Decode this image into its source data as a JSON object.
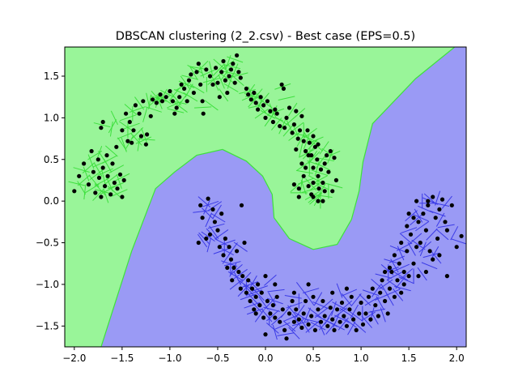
{
  "chart_data": {
    "type": "scatter",
    "title": "DBSCAN clustering (2_2.csv) - Best case (EPS=0.5)",
    "xlabel": "",
    "ylabel": "",
    "xlim": [
      -2.1,
      2.1
    ],
    "ylim": [
      -1.75,
      1.85
    ],
    "xticks": [
      -2.0,
      -1.5,
      -1.0,
      -0.5,
      0.0,
      0.5,
      1.0,
      1.5,
      2.0
    ],
    "yticks": [
      -1.5,
      -1.0,
      -0.5,
      0.0,
      0.5,
      1.0,
      1.5
    ],
    "xtick_labels": [
      "−2.0",
      "−1.5",
      "−1.0",
      "−0.5",
      "0.0",
      "0.5",
      "1.0",
      "1.5",
      "2.0"
    ],
    "ytick_labels": [
      "−1.5",
      "−1.0",
      "−0.5",
      "0.0",
      "0.5",
      "1.0",
      "1.5"
    ],
    "grid": false,
    "legend": "none",
    "colors": {
      "cluster_upper_fill": "#99f599",
      "cluster_upper_edge": "#3ee03e",
      "cluster_lower_fill": "#9a9af5",
      "cluster_lower_edge": "#3b3be6",
      "points": "#000000"
    },
    "regions": [
      {
        "cluster": "upper",
        "boundary": [
          [
            -2.1,
            1.85
          ],
          [
            1.98,
            1.85
          ],
          [
            1.57,
            1.47
          ],
          [
            1.12,
            0.93
          ],
          [
            1.02,
            0.47
          ],
          [
            0.98,
            0.12
          ],
          [
            0.9,
            -0.22
          ],
          [
            0.75,
            -0.52
          ],
          [
            0.5,
            -0.58
          ],
          [
            0.25,
            -0.45
          ],
          [
            0.09,
            -0.2
          ],
          [
            0.07,
            0.08
          ],
          [
            -0.03,
            0.3
          ],
          [
            -0.2,
            0.48
          ],
          [
            -0.45,
            0.62
          ],
          [
            -0.72,
            0.55
          ],
          [
            -0.95,
            0.35
          ],
          [
            -1.15,
            0.15
          ],
          [
            -1.4,
            -0.6
          ],
          [
            -1.72,
            -1.75
          ],
          [
            -2.1,
            -1.75
          ]
        ]
      }
    ],
    "points": {
      "upper": [
        [
          -2.0,
          0.12
        ],
        [
          -1.95,
          0.3
        ],
        [
          -1.9,
          0.45
        ],
        [
          -1.85,
          0.2
        ],
        [
          -1.82,
          0.6
        ],
        [
          -1.8,
          0.35
        ],
        [
          -1.78,
          0.1
        ],
        [
          -1.75,
          0.5
        ],
        [
          -1.74,
          0.28
        ],
        [
          -1.72,
          0.05
        ],
        [
          -1.7,
          0.4
        ],
        [
          -1.68,
          0.18
        ],
        [
          -1.66,
          0.55
        ],
        [
          -1.65,
          0.3
        ],
        [
          -1.62,
          0.08
        ],
        [
          -1.6,
          0.45
        ],
        [
          -1.58,
          0.22
        ],
        [
          -1.56,
          0.65
        ],
        [
          -1.55,
          0.15
        ],
        [
          -1.52,
          0.32
        ],
        [
          -1.5,
          0.05
        ],
        [
          -1.48,
          0.25
        ],
        [
          -1.7,
          0.95
        ],
        [
          -1.72,
          0.88
        ],
        [
          -1.5,
          0.85
        ],
        [
          -1.46,
          1.05
        ],
        [
          -1.44,
          0.72
        ],
        [
          -1.42,
          0.95
        ],
        [
          -1.4,
          0.7
        ],
        [
          -1.38,
          0.85
        ],
        [
          -1.36,
          1.15
        ],
        [
          -1.32,
          1.05
        ],
        [
          -1.3,
          0.78
        ],
        [
          -1.28,
          1.2
        ],
        [
          -1.25,
          0.68
        ],
        [
          -1.24,
          0.8
        ],
        [
          -1.2,
          1.02
        ],
        [
          -1.18,
          1.22
        ],
        [
          -1.14,
          1.18
        ],
        [
          -1.1,
          1.28
        ],
        [
          -1.08,
          1.2
        ],
        [
          -1.04,
          1.25
        ],
        [
          -1.0,
          1.32
        ],
        [
          -0.97,
          1.2
        ],
        [
          -0.95,
          1.05
        ],
        [
          -0.93,
          1.12
        ],
        [
          -0.9,
          1.25
        ],
        [
          -0.88,
          1.4
        ],
        [
          -0.85,
          1.35
        ],
        [
          -0.82,
          1.2
        ],
        [
          -0.8,
          1.45
        ],
        [
          -0.78,
          1.52
        ],
        [
          -0.75,
          1.3
        ],
        [
          -0.72,
          1.55
        ],
        [
          -0.7,
          1.65
        ],
        [
          -0.68,
          1.4
        ],
        [
          -0.66,
          1.2
        ],
        [
          -0.65,
          1.05
        ],
        [
          -0.62,
          1.58
        ],
        [
          -0.58,
          1.5
        ],
        [
          -0.55,
          1.4
        ],
        [
          -0.52,
          1.6
        ],
        [
          -0.5,
          1.42
        ],
        [
          -0.48,
          1.25
        ],
        [
          -0.46,
          1.55
        ],
        [
          -0.44,
          1.68
        ],
        [
          -0.42,
          1.45
        ],
        [
          -0.4,
          1.3
        ],
        [
          -0.38,
          1.5
        ],
        [
          -0.36,
          1.58
        ],
        [
          -0.34,
          1.65
        ],
        [
          -0.32,
          1.42
        ],
        [
          -0.3,
          1.75
        ],
        [
          -0.28,
          1.55
        ],
        [
          -0.26,
          1.48
        ],
        [
          -0.2,
          1.35
        ],
        [
          -0.18,
          1.28
        ],
        [
          -0.15,
          1.22
        ],
        [
          -0.12,
          1.3
        ],
        [
          -0.1,
          1.18
        ],
        [
          -0.08,
          1.1
        ],
        [
          -0.05,
          1.25
        ],
        [
          -0.02,
          1.15
        ],
        [
          0.0,
          1.0
        ],
        [
          0.02,
          1.2
        ],
        [
          0.05,
          1.08
        ],
        [
          0.08,
          0.95
        ],
        [
          0.1,
          1.1
        ],
        [
          0.12,
          1.05
        ],
        [
          0.15,
          0.9
        ],
        [
          0.17,
          1.4
        ],
        [
          0.19,
          1.35
        ],
        [
          0.2,
          0.88
        ],
        [
          0.22,
          1.0
        ],
        [
          0.25,
          1.12
        ],
        [
          0.28,
          0.82
        ],
        [
          0.3,
          0.92
        ],
        [
          0.32,
          1.08
        ],
        [
          0.34,
          0.75
        ],
        [
          0.36,
          0.85
        ],
        [
          0.38,
          1.02
        ],
        [
          0.4,
          0.72
        ],
        [
          0.42,
          0.6
        ],
        [
          0.44,
          0.85
        ],
        [
          0.46,
          0.7
        ],
        [
          0.48,
          0.55
        ],
        [
          0.5,
          0.4
        ],
        [
          0.52,
          0.65
        ],
        [
          0.54,
          0.5
        ],
        [
          0.55,
          0.3
        ],
        [
          0.56,
          0.15
        ],
        [
          0.58,
          0.38
        ],
        [
          0.6,
          0.22
        ],
        [
          0.62,
          0.45
        ],
        [
          0.64,
          0.55
        ],
        [
          0.66,
          0.35
        ],
        [
          0.68,
          0.6
        ],
        [
          0.7,
          0.12
        ],
        [
          0.72,
          0.52
        ],
        [
          0.74,
          0.25
        ],
        [
          0.48,
          0.08
        ],
        [
          0.5,
          0.22
        ],
        [
          0.45,
          0.55
        ],
        [
          0.4,
          0.3
        ],
        [
          0.35,
          0.15
        ],
        [
          0.3,
          0.2
        ],
        [
          0.38,
          0.45
        ],
        [
          0.42,
          0.4
        ],
        [
          0.5,
          0.05
        ],
        [
          0.55,
          0.0
        ],
        [
          0.35,
          0.05
        ],
        [
          0.6,
          0.0
        ],
        [
          0.62,
          0.12
        ],
        [
          0.45,
          0.18
        ],
        [
          0.5,
          0.78
        ],
        [
          0.55,
          0.68
        ],
        [
          0.32,
          0.62
        ]
      ],
      "lower": [
        [
          -0.7,
          -0.5
        ],
        [
          -0.68,
          -0.05
        ],
        [
          -0.66,
          -0.2
        ],
        [
          -0.62,
          -0.45
        ],
        [
          -0.6,
          0.03
        ],
        [
          -0.58,
          -0.4
        ],
        [
          -0.55,
          -0.1
        ],
        [
          -0.53,
          -0.25
        ],
        [
          -0.5,
          -0.35
        ],
        [
          -0.48,
          -0.55
        ],
        [
          -0.46,
          -0.15
        ],
        [
          -0.44,
          -0.65
        ],
        [
          -0.42,
          -0.45
        ],
        [
          -0.4,
          -0.8
        ],
        [
          -0.38,
          -0.55
        ],
        [
          -0.36,
          -0.7
        ],
        [
          -0.35,
          -0.95
        ],
        [
          -0.33,
          -0.8
        ],
        [
          -0.3,
          -0.6
        ],
        [
          -0.28,
          -0.85
        ],
        [
          -0.26,
          -1.05
        ],
        [
          -0.25,
          -0.05
        ],
        [
          -0.24,
          -0.9
        ],
        [
          -0.22,
          -0.5
        ],
        [
          -0.2,
          -1.1
        ],
        [
          -0.18,
          -0.95
        ],
        [
          -0.16,
          -1.2
        ],
        [
          -0.14,
          -1.05
        ],
        [
          -0.12,
          -1.3
        ],
        [
          -0.1,
          -1.15
        ],
        [
          -0.08,
          -1.0
        ],
        [
          -0.06,
          -1.25
        ],
        [
          -0.04,
          -1.1
        ],
        [
          -0.02,
          -1.4
        ],
        [
          0.0,
          -1.6
        ],
        [
          0.02,
          -1.2
        ],
        [
          0.05,
          -1.35
        ],
        [
          0.08,
          -1.25
        ],
        [
          0.1,
          -1.4
        ],
        [
          0.12,
          -1.15
        ],
        [
          0.15,
          -1.45
        ],
        [
          0.18,
          -1.3
        ],
        [
          0.2,
          -1.55
        ],
        [
          0.22,
          -1.65
        ],
        [
          0.25,
          -1.35
        ],
        [
          0.28,
          -1.2
        ],
        [
          0.3,
          -1.45
        ],
        [
          0.32,
          -1.3
        ],
        [
          0.35,
          -1.42
        ],
        [
          0.38,
          -1.52
        ],
        [
          0.4,
          -1.35
        ],
        [
          0.42,
          -1.2
        ],
        [
          0.45,
          -1.48
        ],
        [
          0.48,
          -1.38
        ],
        [
          0.5,
          -1.15
        ],
        [
          0.52,
          -1.55
        ],
        [
          0.55,
          -1.3
        ],
        [
          0.58,
          -1.45
        ],
        [
          0.6,
          -1.2
        ],
        [
          0.62,
          -1.38
        ],
        [
          0.65,
          -1.5
        ],
        [
          0.68,
          -1.28
        ],
        [
          0.7,
          -1.42
        ],
        [
          0.72,
          -1.55
        ],
        [
          0.75,
          -1.3
        ],
        [
          0.78,
          -1.45
        ],
        [
          0.8,
          -1.22
        ],
        [
          0.82,
          -1.38
        ],
        [
          0.85,
          -1.5
        ],
        [
          0.88,
          -1.3
        ],
        [
          0.9,
          -1.15
        ],
        [
          0.92,
          -1.42
        ],
        [
          0.95,
          -1.55
        ],
        [
          0.98,
          -1.35
        ],
        [
          1.0,
          -1.22
        ],
        [
          1.02,
          -1.48
        ],
        [
          1.05,
          -1.35
        ],
        [
          1.08,
          -1.15
        ],
        [
          1.1,
          -1.42
        ],
        [
          1.12,
          -1.05
        ],
        [
          1.15,
          -1.25
        ],
        [
          1.18,
          -1.38
        ],
        [
          1.2,
          -1.1
        ],
        [
          1.22,
          -0.95
        ],
        [
          1.25,
          -1.2
        ],
        [
          1.28,
          -1.35
        ],
        [
          1.3,
          -1.05
        ],
        [
          1.32,
          -0.85
        ],
        [
          1.35,
          -1.15
        ],
        [
          1.38,
          -0.95
        ],
        [
          1.4,
          -0.75
        ],
        [
          1.42,
          -1.1
        ],
        [
          1.45,
          -0.85
        ],
        [
          1.48,
          -0.6
        ],
        [
          1.5,
          -0.9
        ],
        [
          1.52,
          -0.4
        ],
        [
          1.55,
          -0.75
        ],
        [
          1.58,
          -0.55
        ],
        [
          1.6,
          -0.25
        ],
        [
          1.62,
          -0.5
        ],
        [
          1.65,
          -0.15
        ],
        [
          1.68,
          -0.35
        ],
        [
          1.7,
          -0.05
        ],
        [
          1.72,
          -0.6
        ],
        [
          1.75,
          0.05
        ],
        [
          1.78,
          -0.2
        ],
        [
          1.8,
          -0.45
        ],
        [
          1.82,
          -0.1
        ],
        [
          1.85,
          0.02
        ],
        [
          1.88,
          -0.25
        ],
        [
          1.9,
          -0.35
        ],
        [
          1.95,
          -0.05
        ],
        [
          2.05,
          -0.42
        ],
        [
          1.55,
          -0.2
        ],
        [
          1.48,
          -0.3
        ],
        [
          1.42,
          -0.5
        ],
        [
          1.35,
          -0.65
        ],
        [
          1.3,
          -0.8
        ],
        [
          1.25,
          -0.85
        ],
        [
          1.6,
          -0.9
        ],
        [
          1.68,
          -0.85
        ],
        [
          1.75,
          -0.7
        ],
        [
          1.82,
          -0.65
        ],
        [
          1.9,
          -0.9
        ],
        [
          2.0,
          -0.55
        ],
        [
          1.5,
          -0.15
        ],
        [
          1.58,
          0.0
        ],
        [
          1.7,
          0.0
        ],
        [
          1.45,
          -1.0
        ],
        [
          0.0,
          -0.9
        ],
        [
          -0.1,
          -1.35
        ],
        [
          0.1,
          -1.0
        ],
        [
          0.3,
          -1.1
        ],
        [
          0.45,
          -1.0
        ],
        [
          0.7,
          -1.1
        ],
        [
          0.85,
          -1.05
        ]
      ]
    }
  }
}
